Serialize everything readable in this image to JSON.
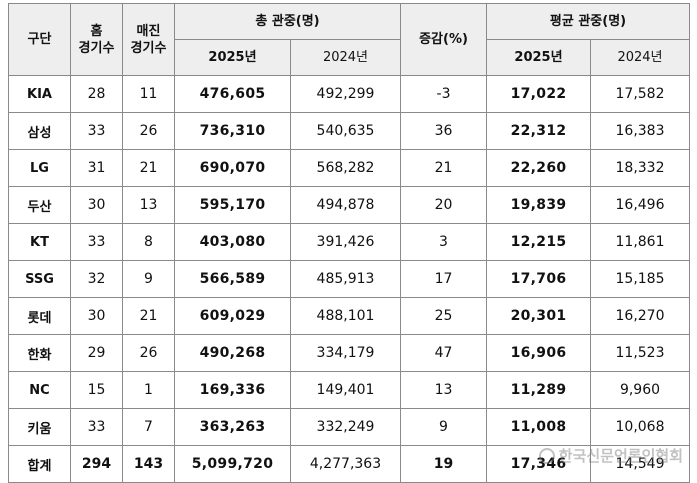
{
  "headers": {
    "team": "구단",
    "home_games": [
      "홈",
      "경기수"
    ],
    "sellout_games": [
      "매진",
      "경기수"
    ],
    "total_attendance": "총 관중(명)",
    "change": "증감(%)",
    "avg_attendance": "평균 관중(명)",
    "year_2025": "2025년",
    "year_2024": "2024년"
  },
  "rows": [
    {
      "team": "KIA",
      "home": "28",
      "sellout": "11",
      "total_2025": "476,605",
      "total_2024": "492,299",
      "change": "-3",
      "avg_2025": "17,022",
      "avg_2024": "17,582"
    },
    {
      "team": "삼성",
      "home": "33",
      "sellout": "26",
      "total_2025": "736,310",
      "total_2024": "540,635",
      "change": "36",
      "avg_2025": "22,312",
      "avg_2024": "16,383"
    },
    {
      "team": "LG",
      "home": "31",
      "sellout": "21",
      "total_2025": "690,070",
      "total_2024": "568,282",
      "change": "21",
      "avg_2025": "22,260",
      "avg_2024": "18,332"
    },
    {
      "team": "두산",
      "home": "30",
      "sellout": "13",
      "total_2025": "595,170",
      "total_2024": "494,878",
      "change": "20",
      "avg_2025": "19,839",
      "avg_2024": "16,496"
    },
    {
      "team": "KT",
      "home": "33",
      "sellout": "8",
      "total_2025": "403,080",
      "total_2024": "391,426",
      "change": "3",
      "avg_2025": "12,215",
      "avg_2024": "11,861"
    },
    {
      "team": "SSG",
      "home": "32",
      "sellout": "9",
      "total_2025": "566,589",
      "total_2024": "485,913",
      "change": "17",
      "avg_2025": "17,706",
      "avg_2024": "15,185"
    },
    {
      "team": "롯데",
      "home": "30",
      "sellout": "21",
      "total_2025": "609,029",
      "total_2024": "488,101",
      "change": "25",
      "avg_2025": "20,301",
      "avg_2024": "16,270"
    },
    {
      "team": "한화",
      "home": "29",
      "sellout": "26",
      "total_2025": "490,268",
      "total_2024": "334,179",
      "change": "47",
      "avg_2025": "16,906",
      "avg_2024": "11,523"
    },
    {
      "team": "NC",
      "home": "15",
      "sellout": "1",
      "total_2025": "169,336",
      "total_2024": "149,401",
      "change": "13",
      "avg_2025": "11,289",
      "avg_2024": "9,960"
    },
    {
      "team": "키움",
      "home": "33",
      "sellout": "7",
      "total_2025": "363,263",
      "total_2024": "332,249",
      "change": "9",
      "avg_2025": "11,008",
      "avg_2024": "10,068"
    },
    {
      "team": "합계",
      "home": "294",
      "sellout": "143",
      "total_2025": "5,099,720",
      "total_2024": "4,277,363",
      "change": "19",
      "avg_2025": "17,346",
      "avg_2024": "14,549"
    }
  ],
  "watermark": "한국신문언론인협회",
  "colors": {
    "header_bg": "#eeeeee",
    "border": "#8a8a8a",
    "text": "#111111"
  }
}
